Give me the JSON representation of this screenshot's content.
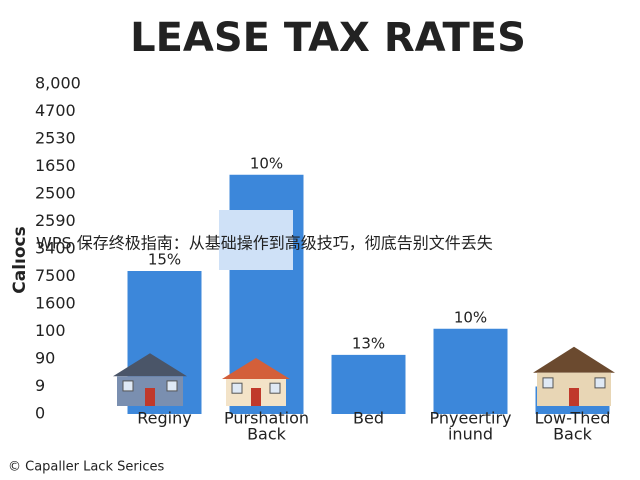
{
  "chart_data": {
    "type": "bar",
    "title": "LEASE TAX RATES",
    "y_label": "Calıocs",
    "categories": [
      [
        "Reginy"
      ],
      [
        "Purshation",
        "Back"
      ],
      [
        "Bed"
      ],
      [
        "Pnyeertiry",
        "inund"
      ],
      [
        "Low-Thed",
        "Back"
      ]
    ],
    "values": [
      5.2,
      8.7,
      2.15,
      3.1,
      1
    ],
    "bar_labels": [
      "15%",
      "10%",
      "13%",
      "10%",
      null
    ],
    "color": "#3c87da",
    "ylim": [
      0,
      12
    ],
    "yticks": [
      {
        "value": 0,
        "label": "0"
      },
      {
        "value": 1,
        "label": "9"
      },
      {
        "value": 2,
        "label": "90"
      },
      {
        "value": 3,
        "label": "100"
      },
      {
        "value": 4,
        "label": "1600"
      },
      {
        "value": 5,
        "label": "7500"
      },
      {
        "value": 6,
        "label": "3400"
      },
      {
        "value": 7,
        "label": "2590"
      },
      {
        "value": 8,
        "label": "2500"
      },
      {
        "value": 9,
        "label": "1650"
      },
      {
        "value": 10,
        "label": "2530"
      },
      {
        "value": 11,
        "label": "4700"
      },
      {
        "value": 12,
        "label": "8,000"
      }
    ],
    "overlay_text": "WPS 保存终极指南：从基础操作到高级技巧，彻底告别文件丢失",
    "footer": "© Capaller Lack Serices"
  }
}
